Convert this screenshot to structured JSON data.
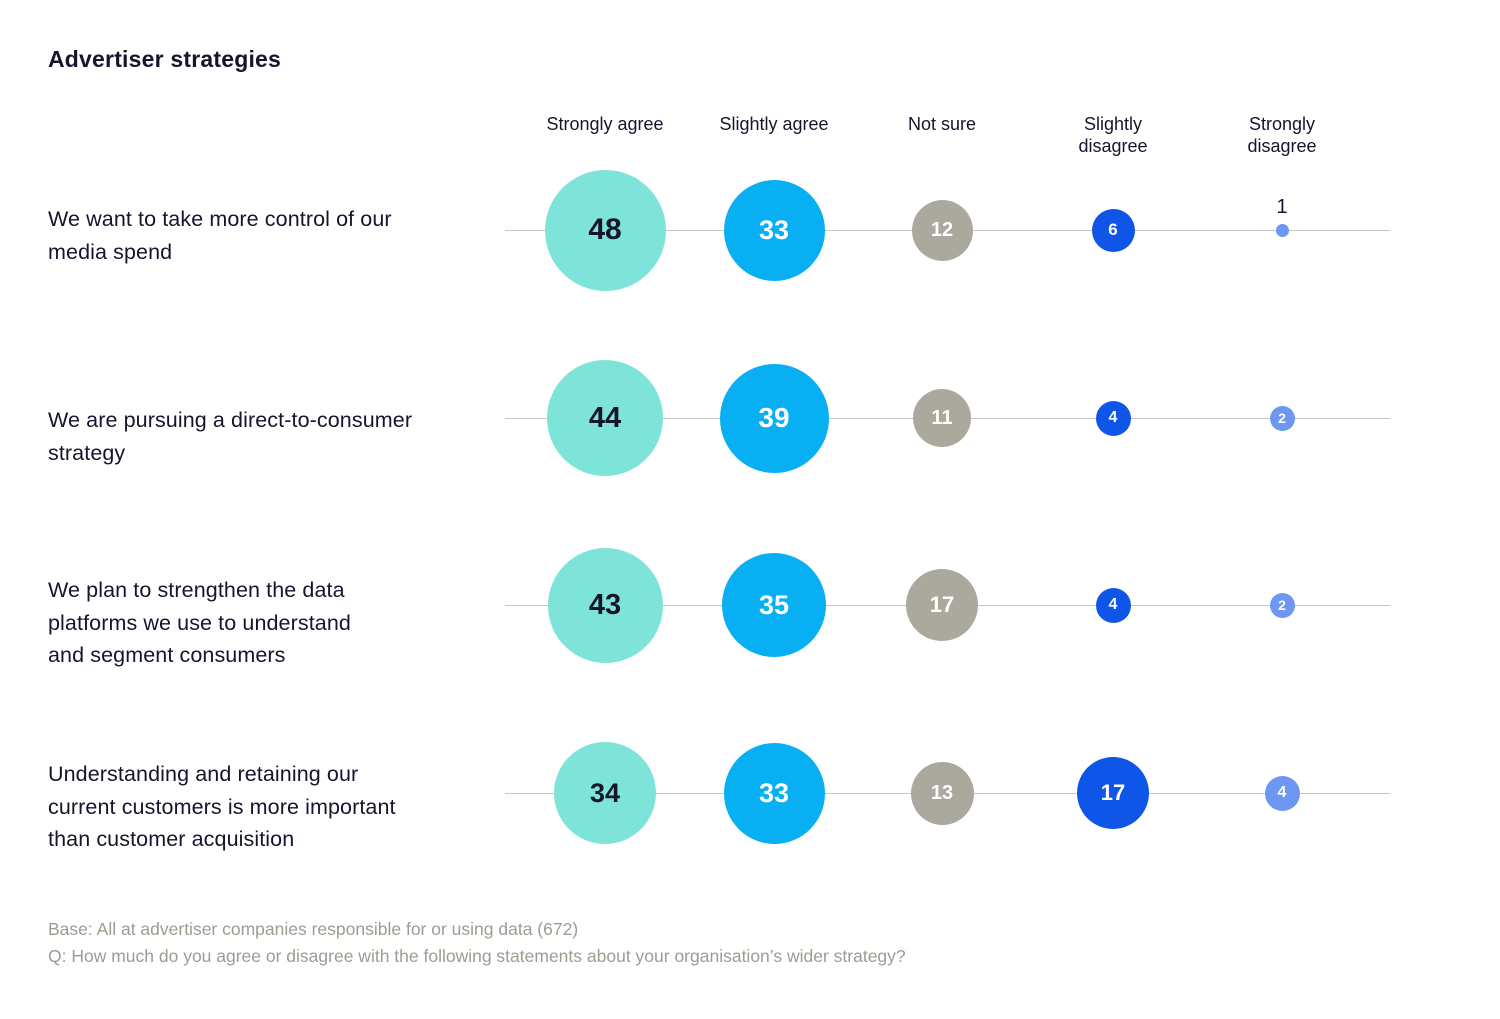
{
  "page": {
    "title": "Advertiser strategies",
    "footer_lines": [
      "Base: All at advertiser companies responsible for or using data (672)",
      "Q: How much do you agree or disagree with the following statements about your organisation’s wider strategy?"
    ]
  },
  "chart_data": {
    "type": "scatter",
    "subtype": "bubble-matrix",
    "unit": "percent",
    "sizing": "bubble diameter proportional to square root of value",
    "legend_position": "column headers on top",
    "grid": "one horizontal track line per row",
    "line_color": "#c7c6c1",
    "columns": [
      {
        "label": "Strongly agree",
        "color": "#7EE4D9",
        "text_color": "#15152d"
      },
      {
        "label": "Slightly agree",
        "color": "#09AFF3",
        "text_color": "#ffffff"
      },
      {
        "label": "Not sure",
        "color": "#ABA99D",
        "text_color": "#ffffff"
      },
      {
        "label": "Slightly\ndisagree",
        "color": "#0F55E8",
        "text_color": "#ffffff"
      },
      {
        "label": "Strongly\ndisagree",
        "color": "#6D97F0",
        "text_color": "#ffffff"
      }
    ],
    "rows": [
      {
        "label": "We want to take more control of our\nmedia spend",
        "values": [
          48,
          33,
          12,
          6,
          1
        ]
      },
      {
        "label": "We are pursuing a direct-to-consumer\nstrategy",
        "values": [
          44,
          39,
          11,
          4,
          2
        ]
      },
      {
        "label": "We plan to strengthen the data\nplatforms we use to understand\nand segment consumers",
        "values": [
          43,
          35,
          17,
          4,
          2
        ]
      },
      {
        "label": "Understanding and retaining our\ncurrent customers is more important\nthan customer acquisition",
        "values": [
          34,
          33,
          13,
          17,
          4
        ]
      }
    ]
  }
}
